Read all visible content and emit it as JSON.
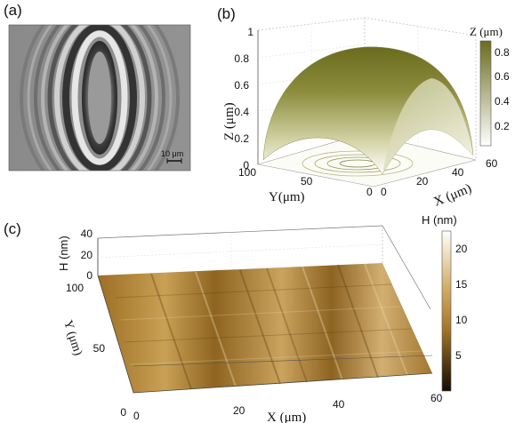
{
  "panels": {
    "a": {
      "label": "(a)",
      "scale_bar_label": "10 μm"
    },
    "b": {
      "label": "(b)",
      "z_axis_label": "Z (μm)",
      "y_axis_label": "Y(μm)",
      "x_axis_label": "X (μm)",
      "z_ticks": [
        "0",
        "0.2",
        "0.4",
        "0.6",
        "0.8",
        "1"
      ],
      "y_ticks": [
        "100",
        "50",
        "0"
      ],
      "x_ticks": [
        "0",
        "20",
        "40",
        "60"
      ],
      "colorbar_title": "Z (μm)",
      "colorbar_ticks": [
        "0.8",
        "0.6",
        "0.4",
        "0.2"
      ],
      "colors": {
        "low": "#ffffff",
        "high": "#6b6b1f"
      }
    },
    "c": {
      "label": "(c)",
      "h_axis_label": "H (nm)",
      "y_axis_label": "Y (μm)",
      "x_axis_label": "X (μm)",
      "h_ticks": [
        "40",
        "20",
        "0"
      ],
      "y_ticks": [
        "100",
        "50",
        "0"
      ],
      "x_ticks": [
        "0",
        "20",
        "40",
        "60"
      ],
      "colorbar_title": "H (nm)",
      "colorbar_ticks": [
        "20",
        "15",
        "10",
        "5"
      ],
      "colors": {
        "low": "#1a1208",
        "mid": "#b5822e",
        "high": "#ffffff"
      }
    }
  }
}
